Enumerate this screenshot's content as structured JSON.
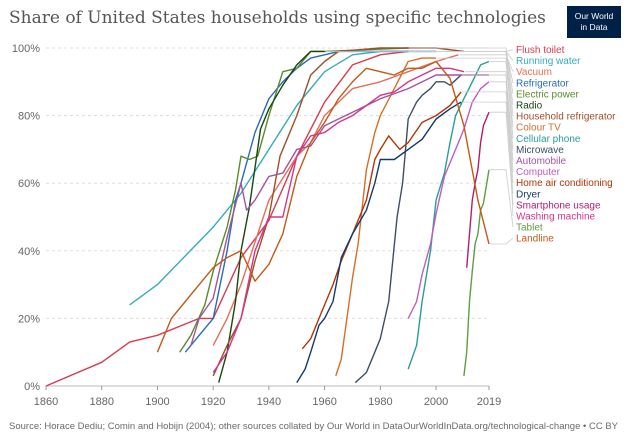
{
  "title": "Share of United States households using specific technologies",
  "logo": {
    "line1": "Our World",
    "line2": "in Data"
  },
  "footer": {
    "source": "Source: Horace Dediu; Comin and Hobijn (2004); other sources collated by Our World in Data",
    "url": "OurWorldInData.org/technological-change • CC BY"
  },
  "chart_data": {
    "type": "line",
    "title": "Share of United States households using specific technologies",
    "xlabel": "",
    "ylabel": "",
    "xlim": [
      1860,
      2019
    ],
    "ylim": [
      0,
      100
    ],
    "x_ticks": [
      "1860",
      "1880",
      "1900",
      "1920",
      "1940",
      "1960",
      "1980",
      "2000",
      "2019"
    ],
    "x_tick_values": [
      1860,
      1880,
      1900,
      1920,
      1940,
      1960,
      1980,
      2000,
      2019
    ],
    "y_ticks": [
      "0%",
      "20%",
      "40%",
      "60%",
      "80%",
      "100%"
    ],
    "y_tick_values": [
      0,
      20,
      40,
      60,
      80,
      100
    ],
    "grid": "horizontal dotted",
    "legend": "right",
    "series": [
      {
        "name": "Flush toilet",
        "color": "#d73c50",
        "points": [
          [
            1860,
            0
          ],
          [
            1880,
            7
          ],
          [
            1890,
            13
          ],
          [
            1900,
            15
          ],
          [
            1915,
            20
          ],
          [
            1920,
            20
          ],
          [
            1930,
            38
          ],
          [
            1940,
            49
          ],
          [
            1950,
            68
          ],
          [
            1960,
            84
          ],
          [
            1970,
            95
          ],
          [
            1980,
            98
          ],
          [
            1990,
            99
          ]
        ]
      },
      {
        "name": "Running water",
        "color": "#38aaba",
        "points": [
          [
            1890,
            24
          ],
          [
            1900,
            30
          ],
          [
            1920,
            47
          ],
          [
            1930,
            57
          ],
          [
            1940,
            70
          ],
          [
            1950,
            83
          ],
          [
            1960,
            93
          ],
          [
            1970,
            98
          ],
          [
            1980,
            99
          ],
          [
            1990,
            99
          ]
        ]
      },
      {
        "name": "Vacuum",
        "color": "#e56e5a",
        "points": [
          [
            1920,
            12
          ],
          [
            1925,
            20
          ],
          [
            1930,
            30
          ],
          [
            1940,
            55
          ],
          [
            1950,
            68
          ],
          [
            1955,
            72
          ],
          [
            1960,
            80
          ],
          [
            1970,
            88
          ],
          [
            1980,
            90
          ],
          [
            1990,
            93
          ],
          [
            2000,
            96
          ],
          [
            2008,
            98
          ]
        ]
      },
      {
        "name": "Refrigerator",
        "color": "#286bbb",
        "points": [
          [
            1910,
            10
          ],
          [
            1915,
            15
          ],
          [
            1920,
            20
          ],
          [
            1925,
            40
          ],
          [
            1928,
            55
          ],
          [
            1930,
            60
          ],
          [
            1935,
            75
          ],
          [
            1940,
            85
          ],
          [
            1945,
            90
          ],
          [
            1950,
            94
          ],
          [
            1955,
            97
          ],
          [
            1960,
            98
          ],
          [
            1965,
            99
          ],
          [
            1980,
            99
          ],
          [
            2000,
            99
          ]
        ]
      },
      {
        "name": "Electric power",
        "color": "#5a8a2a",
        "points": [
          [
            1908,
            10
          ],
          [
            1912,
            15
          ],
          [
            1917,
            24
          ],
          [
            1920,
            34
          ],
          [
            1925,
            47
          ],
          [
            1928,
            58
          ],
          [
            1930,
            68
          ],
          [
            1933,
            67
          ],
          [
            1936,
            68
          ],
          [
            1940,
            80
          ],
          [
            1945,
            93
          ],
          [
            1950,
            94
          ],
          [
            1955,
            99
          ],
          [
            1960,
            99
          ],
          [
            1990,
            100
          ]
        ]
      },
      {
        "name": "Radio",
        "color": "#18470f",
        "points": [
          [
            1922,
            1
          ],
          [
            1925,
            10
          ],
          [
            1928,
            25
          ],
          [
            1930,
            40
          ],
          [
            1933,
            53
          ],
          [
            1937,
            76
          ],
          [
            1940,
            82
          ],
          [
            1945,
            89
          ],
          [
            1950,
            95
          ],
          [
            1955,
            99
          ],
          [
            1960,
            99
          ]
        ]
      },
      {
        "name": "Household refrigerator",
        "color": "#9a5129",
        "points": [
          [
            1920,
            3
          ],
          [
            1925,
            12
          ],
          [
            1930,
            20
          ],
          [
            1935,
            37
          ],
          [
            1940,
            50
          ],
          [
            1944,
            68
          ],
          [
            1950,
            80
          ],
          [
            1955,
            92
          ],
          [
            1960,
            96
          ],
          [
            1965,
            99
          ],
          [
            1980,
            100
          ],
          [
            2000,
            100
          ],
          [
            2010,
            99
          ]
        ]
      },
      {
        "name": "Colour TV",
        "color": "#d27029",
        "points": [
          [
            1964,
            3
          ],
          [
            1966,
            8
          ],
          [
            1970,
            32
          ],
          [
            1972,
            42
          ],
          [
            1975,
            64
          ],
          [
            1978,
            75
          ],
          [
            1980,
            80
          ],
          [
            1985,
            88
          ],
          [
            1990,
            96
          ],
          [
            1995,
            97
          ],
          [
            2000,
            97
          ]
        ]
      },
      {
        "name": "Cellular phone",
        "color": "#2a9d9a",
        "points": [
          [
            1990,
            5
          ],
          [
            1993,
            12
          ],
          [
            1995,
            25
          ],
          [
            1998,
            40
          ],
          [
            2000,
            55
          ],
          [
            2003,
            63
          ],
          [
            2005,
            72
          ],
          [
            2007,
            80
          ],
          [
            2010,
            85
          ],
          [
            2013,
            90
          ],
          [
            2016,
            95
          ],
          [
            2019,
            96
          ]
        ]
      },
      {
        "name": "Microwave",
        "color": "#3c4e66",
        "points": [
          [
            1971,
            1
          ],
          [
            1975,
            4
          ],
          [
            1978,
            10
          ],
          [
            1980,
            14
          ],
          [
            1983,
            25
          ],
          [
            1986,
            50
          ],
          [
            1988,
            60
          ],
          [
            1990,
            79
          ],
          [
            1993,
            84
          ],
          [
            1995,
            86
          ],
          [
            1998,
            88
          ],
          [
            2000,
            90
          ],
          [
            2003,
            90
          ],
          [
            2005,
            89
          ],
          [
            2009,
            92
          ]
        ]
      },
      {
        "name": "Automobile",
        "color": "#a2559c",
        "points": [
          [
            1912,
            12
          ],
          [
            1915,
            20
          ],
          [
            1920,
            26
          ],
          [
            1925,
            44
          ],
          [
            1930,
            60
          ],
          [
            1932,
            52
          ],
          [
            1935,
            55
          ],
          [
            1940,
            62
          ],
          [
            1945,
            63
          ],
          [
            1950,
            70
          ],
          [
            1955,
            71
          ],
          [
            1960,
            77
          ],
          [
            1965,
            79
          ],
          [
            1970,
            81
          ],
          [
            1980,
            85
          ],
          [
            1990,
            88
          ],
          [
            2000,
            92
          ],
          [
            2010,
            92
          ],
          [
            2019,
            92
          ]
        ]
      },
      {
        "name": "Computer",
        "color": "#be5cc3",
        "points": [
          [
            1990,
            20
          ],
          [
            1993,
            25
          ],
          [
            1995,
            33
          ],
          [
            1998,
            42
          ],
          [
            2000,
            51
          ],
          [
            2003,
            62
          ],
          [
            2007,
            70
          ],
          [
            2010,
            76
          ],
          [
            2013,
            84
          ],
          [
            2016,
            88
          ],
          [
            2019,
            90
          ]
        ]
      },
      {
        "name": "Home air conditioning",
        "color": "#b13507",
        "points": [
          [
            1952,
            11
          ],
          [
            1955,
            14
          ],
          [
            1958,
            20
          ],
          [
            1960,
            24
          ],
          [
            1963,
            30
          ],
          [
            1966,
            37
          ],
          [
            1970,
            45
          ],
          [
            1975,
            55
          ],
          [
            1978,
            67
          ],
          [
            1980,
            70
          ],
          [
            1983,
            74
          ],
          [
            1987,
            70
          ],
          [
            1990,
            72
          ],
          [
            1995,
            78
          ],
          [
            2000,
            80
          ],
          [
            2005,
            83
          ],
          [
            2009,
            87
          ]
        ]
      },
      {
        "name": "Dryer",
        "color": "#13386a",
        "points": [
          [
            1950,
            1
          ],
          [
            1953,
            5
          ],
          [
            1955,
            10
          ],
          [
            1958,
            18
          ],
          [
            1960,
            20
          ],
          [
            1963,
            25
          ],
          [
            1966,
            38
          ],
          [
            1970,
            45
          ],
          [
            1975,
            52
          ],
          [
            1978,
            60
          ],
          [
            1980,
            67
          ],
          [
            1985,
            67
          ],
          [
            1990,
            70
          ],
          [
            1995,
            73
          ],
          [
            2000,
            79
          ],
          [
            2005,
            82
          ],
          [
            2009,
            84
          ]
        ]
      },
      {
        "name": "Smartphone usage",
        "color": "#b21e6c",
        "points": [
          [
            2011,
            35
          ],
          [
            2012,
            45
          ],
          [
            2013,
            55
          ],
          [
            2014,
            60
          ],
          [
            2015,
            64
          ],
          [
            2016,
            72
          ],
          [
            2017,
            77
          ],
          [
            2018,
            79
          ],
          [
            2019,
            81
          ]
        ]
      },
      {
        "name": "Washing machine",
        "color": "#d5358c",
        "points": [
          [
            1920,
            4
          ],
          [
            1925,
            10
          ],
          [
            1930,
            20
          ],
          [
            1935,
            40
          ],
          [
            1940,
            50
          ],
          [
            1945,
            50
          ],
          [
            1950,
            68
          ],
          [
            1955,
            74
          ],
          [
            1960,
            75
          ],
          [
            1965,
            78
          ],
          [
            1970,
            80
          ],
          [
            1975,
            83
          ],
          [
            1980,
            86
          ],
          [
            1985,
            87
          ],
          [
            1990,
            90
          ],
          [
            1995,
            92
          ],
          [
            2000,
            94
          ],
          [
            2005,
            94
          ],
          [
            2010,
            93
          ]
        ]
      },
      {
        "name": "Tablet",
        "color": "#5e9e42",
        "points": [
          [
            2010,
            3
          ],
          [
            2011,
            10
          ],
          [
            2012,
            25
          ],
          [
            2013,
            34
          ],
          [
            2014,
            42
          ],
          [
            2015,
            45
          ],
          [
            2016,
            52
          ],
          [
            2017,
            54
          ],
          [
            2019,
            64
          ]
        ]
      },
      {
        "name": "Landline",
        "color": "#c35918",
        "points": [
          [
            1900,
            10
          ],
          [
            1905,
            20
          ],
          [
            1910,
            25
          ],
          [
            1915,
            30
          ],
          [
            1920,
            35
          ],
          [
            1925,
            38
          ],
          [
            1930,
            40
          ],
          [
            1935,
            31
          ],
          [
            1940,
            36
          ],
          [
            1945,
            45
          ],
          [
            1950,
            62
          ],
          [
            1955,
            72
          ],
          [
            1960,
            78
          ],
          [
            1965,
            85
          ],
          [
            1970,
            90
          ],
          [
            1975,
            94
          ],
          [
            1980,
            93
          ],
          [
            1985,
            92
          ],
          [
            1990,
            94
          ],
          [
            1995,
            94
          ],
          [
            2000,
            96
          ],
          [
            2005,
            91
          ],
          [
            2010,
            77
          ],
          [
            2015,
            55
          ],
          [
            2019,
            42
          ]
        ]
      }
    ]
  }
}
